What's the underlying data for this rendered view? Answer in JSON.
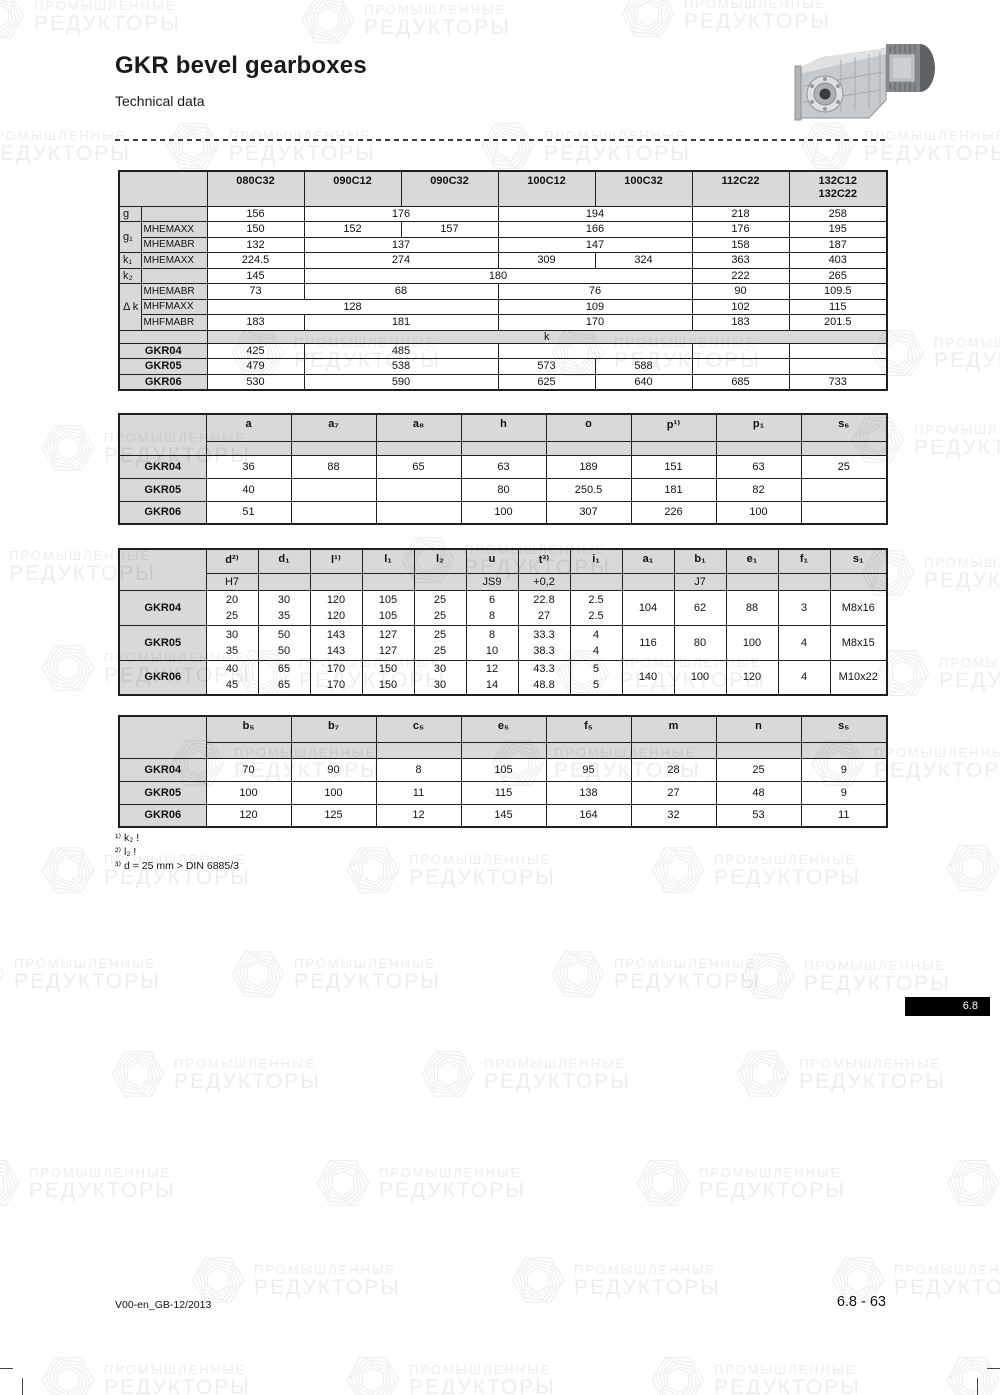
{
  "header": {
    "title": "GKR bevel gearboxes",
    "subtitle": "Technical data"
  },
  "watermark": {
    "line1": "ПРОМЫШЛЕННЫЕ",
    "line2": "РЕДУКТОРЫ"
  },
  "colors": {
    "header_gray": "#d9d9d9",
    "badge_bg": "#000000",
    "badge_text": "#ffffff",
    "watermark": "#ededed"
  },
  "icons": {
    "product_image": "bevel-gearbox-with-motor-photo",
    "watermark_logo": "hexagon-spiral-logo"
  },
  "table1": {
    "col_headers": [
      "080C32",
      "090C12",
      "090C32",
      "100C12",
      "100C32",
      "112C22",
      "132C12\n132C22"
    ],
    "rows": [
      {
        "dim": "g",
        "dim_rowspan": 1,
        "sub": "",
        "cells": [
          [
            "156",
            1
          ],
          [
            "176",
            2
          ],
          [
            "194",
            2
          ],
          [
            "218",
            1
          ],
          [
            "258",
            1
          ]
        ]
      },
      {
        "dim": "g₁",
        "dim_rowspan": 2,
        "sub": "MHEMAXX",
        "cells": [
          [
            "150",
            1
          ],
          [
            "152",
            1
          ],
          [
            "157",
            1
          ],
          [
            "166",
            2
          ],
          [
            "176",
            1
          ],
          [
            "195",
            1
          ]
        ]
      },
      {
        "sub": "MHEMABR",
        "cells": [
          [
            "132",
            1
          ],
          [
            "137",
            2
          ],
          [
            "147",
            2
          ],
          [
            "158",
            1
          ],
          [
            "187",
            1
          ]
        ]
      },
      {
        "dim": "k₁",
        "dim_rowspan": 1,
        "sub": "MHEMAXX",
        "cells": [
          [
            "224.5",
            1
          ],
          [
            "274",
            2
          ],
          [
            "309",
            1
          ],
          [
            "324",
            1
          ],
          [
            "363",
            1
          ],
          [
            "403",
            1
          ]
        ]
      },
      {
        "dim": "k₂",
        "dim_rowspan": 1,
        "sub": "",
        "cells": [
          [
            "145",
            1
          ],
          [
            "180",
            4
          ],
          [
            "222",
            1
          ],
          [
            "265",
            1
          ]
        ]
      },
      {
        "dim": "Δ k",
        "dim_rowspan": 3,
        "sub": "MHEMABR",
        "cells": [
          [
            "73",
            1
          ],
          [
            "68",
            2
          ],
          [
            "76",
            2
          ],
          [
            "90",
            1
          ],
          [
            "109.5",
            1
          ]
        ]
      },
      {
        "sub": "MHFMAXX",
        "cells": [
          [
            "128",
            3
          ],
          [
            "109",
            2
          ],
          [
            "102",
            1
          ],
          [
            "115",
            1
          ]
        ]
      },
      {
        "sub": "MHFMABR",
        "cells": [
          [
            "183",
            1
          ],
          [
            "181",
            2
          ],
          [
            "170",
            2
          ],
          [
            "183",
            1
          ],
          [
            "201.5",
            1
          ]
        ]
      }
    ],
    "k_label": "k",
    "k_rows": [
      {
        "label": "GKR04",
        "cells": [
          [
            "425",
            1
          ],
          [
            "485",
            2
          ],
          [
            "",
            2
          ],
          [
            "",
            1
          ],
          [
            "",
            1
          ]
        ]
      },
      {
        "label": "GKR05",
        "cells": [
          [
            "479",
            1
          ],
          [
            "538",
            2
          ],
          [
            "573",
            1
          ],
          [
            "588",
            1
          ],
          [
            "",
            1
          ],
          [
            "",
            1
          ]
        ]
      },
      {
        "label": "GKR06",
        "cells": [
          [
            "530",
            1
          ],
          [
            "590",
            2
          ],
          [
            "625",
            1
          ],
          [
            "640",
            1
          ],
          [
            "685",
            1
          ],
          [
            "733",
            1
          ]
        ]
      }
    ]
  },
  "table2": {
    "headers": [
      "a",
      "a₇",
      "a₈",
      "h",
      "o",
      "p¹⁾",
      "p₁",
      "s₆"
    ],
    "sub_headers": [
      "",
      "",
      "",
      "",
      "",
      "",
      "",
      ""
    ],
    "rows": [
      {
        "label": "GKR04",
        "values": [
          "36",
          "88",
          "65",
          "63",
          "189",
          "151",
          "63",
          "25"
        ]
      },
      {
        "label": "GKR05",
        "values": [
          "40",
          "",
          "",
          "80",
          "250.5",
          "181",
          "82",
          ""
        ]
      },
      {
        "label": "GKR06",
        "values": [
          "51",
          "",
          "",
          "100",
          "307",
          "226",
          "100",
          ""
        ]
      }
    ]
  },
  "table3": {
    "headers": [
      "d²⁾",
      "d₁",
      "l¹⁾",
      "l₁",
      "l₂",
      "u",
      "t³⁾",
      "i₁",
      "a₁",
      "b₁",
      "e₁",
      "f₁",
      "s₁"
    ],
    "sub_headers": [
      "H7",
      "",
      "",
      "",
      "",
      "JS9",
      "+0,2",
      "",
      "",
      "J7",
      "",
      "",
      ""
    ],
    "rows": [
      {
        "label": "GKR04",
        "values": [
          [
            "20",
            "25"
          ],
          [
            "30",
            "35"
          ],
          [
            "120",
            "120"
          ],
          [
            "105",
            "105"
          ],
          [
            "25",
            "25"
          ],
          [
            "6",
            "8"
          ],
          [
            "22.8",
            "27"
          ],
          [
            "2.5",
            "2.5"
          ],
          "104",
          "62",
          "88",
          "3",
          "M8x16"
        ]
      },
      {
        "label": "GKR05",
        "values": [
          [
            "30",
            "35"
          ],
          [
            "50",
            "50"
          ],
          [
            "143",
            "143"
          ],
          [
            "127",
            "127"
          ],
          [
            "25",
            "25"
          ],
          [
            "8",
            "10"
          ],
          [
            "33.3",
            "38.3"
          ],
          [
            "4",
            "4"
          ],
          "116",
          "80",
          "100",
          "4",
          "M8x15"
        ]
      },
      {
        "label": "GKR06",
        "values": [
          [
            "40",
            "45"
          ],
          [
            "65",
            "65"
          ],
          [
            "170",
            "170"
          ],
          [
            "150",
            "150"
          ],
          [
            "30",
            "30"
          ],
          [
            "12",
            "14"
          ],
          [
            "43.3",
            "48.8"
          ],
          [
            "5",
            "5"
          ],
          "140",
          "100",
          "120",
          "4",
          "M10x22"
        ]
      }
    ]
  },
  "table4": {
    "headers": [
      "b₅",
      "b₇",
      "c₅",
      "e₅",
      "f₅",
      "m",
      "n",
      "s₅"
    ],
    "sub_headers": [
      "",
      "",
      "",
      "",
      "",
      "",
      "",
      ""
    ],
    "rows": [
      {
        "label": "GKR04",
        "values": [
          "70",
          "90",
          "8",
          "105",
          "95",
          "28",
          "25",
          "9"
        ]
      },
      {
        "label": "GKR05",
        "values": [
          "100",
          "100",
          "11",
          "115",
          "138",
          "27",
          "48",
          "9"
        ]
      },
      {
        "label": "GKR06",
        "values": [
          "120",
          "125",
          "12",
          "145",
          "164",
          "32",
          "53",
          "11"
        ]
      }
    ]
  },
  "footnotes": [
    "¹⁾ k₂ !",
    "²⁾ l₂ !",
    "³⁾ d = 25 mm > DIN 6885/3"
  ],
  "section_tab": "6.8",
  "footer": {
    "left": "V00-en_GB-12/2013",
    "right": "6.8 - 63"
  }
}
